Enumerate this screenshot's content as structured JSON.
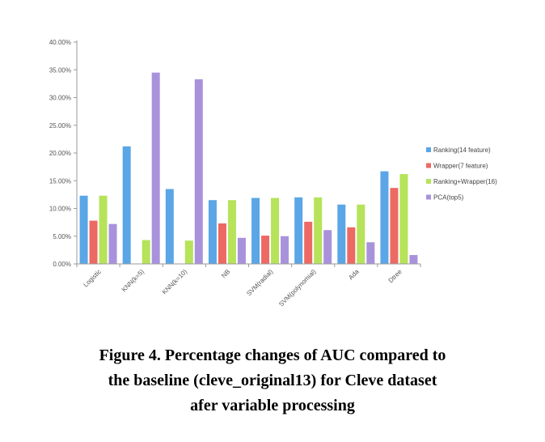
{
  "caption": {
    "line1": "Figure 4.  Percentage changes of AUC compared to",
    "line2": "the baseline (cleve_original13) for Cleve dataset",
    "line3": "afer variable processing"
  },
  "chart_data": {
    "type": "bar",
    "categories": [
      "Logistic",
      "KNN(k=5)",
      "KNN(k=10)",
      "NB",
      "SVM(radial)",
      "SVM(polynomial)",
      "Ada",
      "Dtree"
    ],
    "series": [
      {
        "name": "Ranking(14 feature)",
        "color": "#5aa6e6",
        "values": [
          12.3,
          21.2,
          13.5,
          11.5,
          11.9,
          12.0,
          10.7,
          16.7
        ]
      },
      {
        "name": "Wrapper(7 feature)",
        "color": "#ec6a63",
        "values": [
          7.8,
          0,
          0,
          7.3,
          5.1,
          7.6,
          6.6,
          13.7
        ]
      },
      {
        "name": "Ranking+Wrapper(16)",
        "color": "#b6e35a",
        "values": [
          12.3,
          4.3,
          4.2,
          11.5,
          11.9,
          12.0,
          10.7,
          16.2
        ]
      },
      {
        "name": "PCA(top5)",
        "color": "#a992dc",
        "values": [
          7.2,
          34.5,
          33.3,
          4.7,
          5.0,
          6.1,
          3.9,
          1.6
        ]
      }
    ],
    "yticks": [
      "0.00%",
      "5.00%",
      "10.00%",
      "15.00%",
      "20.00%",
      "25.00%",
      "30.00%",
      "35.00%",
      "40.00%"
    ],
    "ylim": [
      0,
      40
    ],
    "grid": false,
    "legend": "right"
  }
}
